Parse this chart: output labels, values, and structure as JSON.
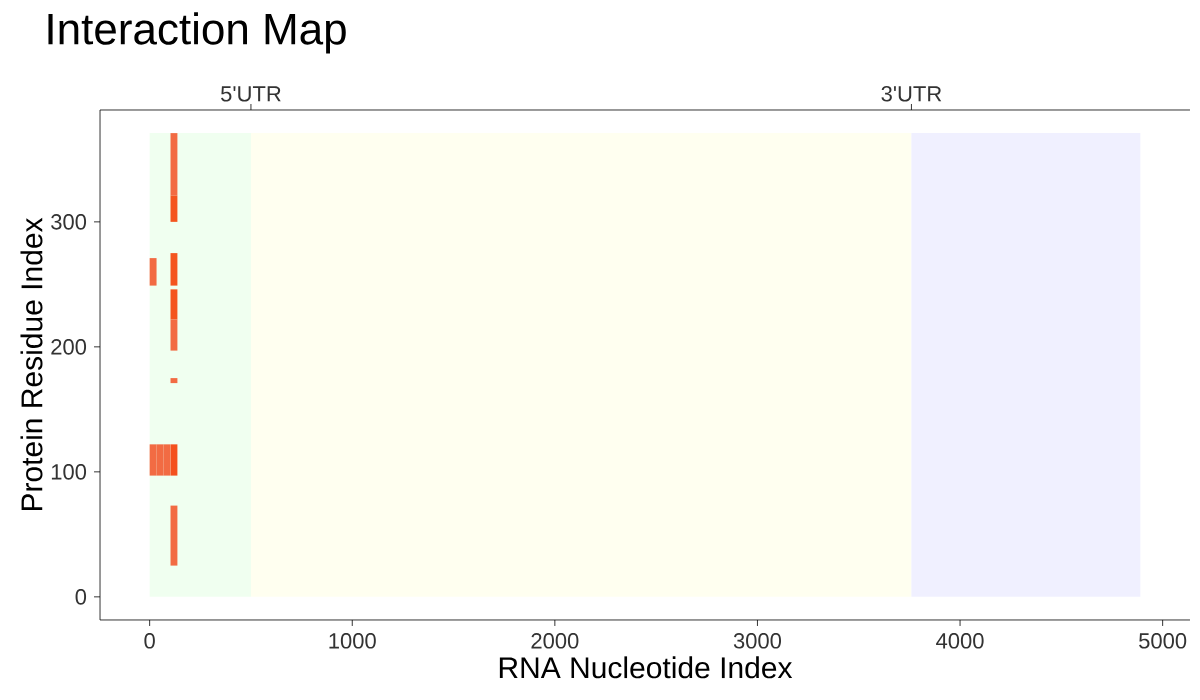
{
  "chart_data": {
    "type": "bar",
    "title": "Interaction Map",
    "xlabel": "RNA Nucleotide Index",
    "ylabel": "Protein Residue Index",
    "series": [
      {
        "x": [
          17,
          51,
          85,
          120
        ],
        "base": [
          97,
          97,
          97,
          97
        ],
        "values": [
          25,
          25,
          25,
          25
        ],
        "colors": [
          "#f26b43",
          "#f26b43",
          "#f26b43",
          "#f4511e"
        ]
      },
      {
        "x": [
          17,
          120
        ],
        "base": [
          249,
          249
        ],
        "values": [
          22,
          26
        ],
        "colors": [
          "#f26b43",
          "#f4551f"
        ]
      },
      {
        "x": [
          120
        ],
        "base": [
          321
        ],
        "values": [
          50
        ],
        "colors": [
          "#f26b43"
        ]
      },
      {
        "x": [
          120
        ],
        "base": [
          300
        ],
        "values": [
          21
        ],
        "colors": [
          "#f4551f"
        ]
      },
      {
        "x": [
          120
        ],
        "base": [
          222
        ],
        "values": [
          24
        ],
        "colors": [
          "#f4551f"
        ]
      },
      {
        "x": [
          120
        ],
        "base": [
          197
        ],
        "values": [
          25
        ],
        "colors": [
          "#f26b43"
        ]
      },
      {
        "x": [
          120
        ],
        "base": [
          171
        ],
        "values": [
          4
        ],
        "colors": [
          "#f26b43"
        ]
      },
      {
        "x": [
          120
        ],
        "base": [
          25
        ],
        "values": [
          48
        ],
        "colors": [
          "#f26b43"
        ]
      }
    ],
    "xlim": [
      -245,
      5135
    ],
    "xticks": [
      0,
      1000,
      2000,
      3000,
      4000,
      5000
    ],
    "ylim": [
      -18.5,
      389.5
    ],
    "yticks": [
      0,
      100,
      200,
      300
    ],
    "ref_lines": [
      {
        "axis": "x",
        "value": 500,
        "label": "5'UTR"
      },
      {
        "axis": "x",
        "value": 3760,
        "label": "3'UTR"
      }
    ],
    "bands": [
      {
        "axis": "x",
        "from": 0,
        "to": 500,
        "color": "#f0fff0"
      },
      {
        "axis": "x",
        "from": 500,
        "to": 3760,
        "color": "#fffff0"
      },
      {
        "axis": "x",
        "from": 3760,
        "to": 4890,
        "color": "#f0f0ff"
      }
    ],
    "grid": false
  }
}
